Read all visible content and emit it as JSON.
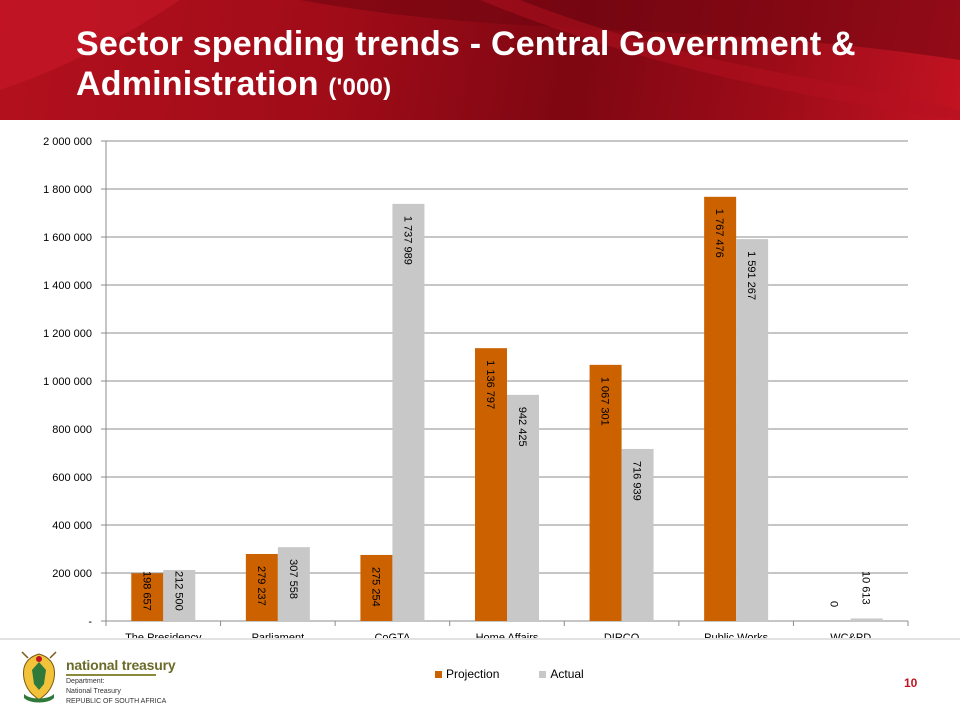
{
  "slide": {
    "title_main": "Sector spending trends - Central Government & Administration",
    "title_unit": "('000)",
    "page_number": "10"
  },
  "branding": {
    "name": "national treasury",
    "sub_lines": [
      "Department:",
      "National Treasury",
      "REPUBLIC OF SOUTH AFRICA"
    ]
  },
  "colors": {
    "header_red": "#a00c18",
    "projection": "#cc6100",
    "actual": "#c8c8c8",
    "page_number": "#c21322"
  },
  "chart_data": {
    "type": "bar",
    "categories": [
      "The Presidency",
      "Parliament",
      "CoGTA",
      "Home Affairs",
      "DIRCO",
      "Public Works",
      "WC&PD"
    ],
    "series": [
      {
        "name": "Projection",
        "values": [
          198657,
          279237,
          275254,
          1136797,
          1067301,
          1767476,
          0
        ],
        "labels": [
          "198 657",
          "279 237",
          "275 254",
          "1 136 797",
          "1 067 301",
          "1 767 476",
          "0"
        ]
      },
      {
        "name": "Actual",
        "values": [
          212500,
          307558,
          1737989,
          942425,
          716939,
          1591267,
          10613
        ],
        "labels": [
          "212 500",
          "307 558",
          "1 737 989",
          "942 425",
          "716 939",
          "1 591 267",
          "10 613"
        ]
      }
    ],
    "ylim": [
      0,
      2000000
    ],
    "yticks": [
      0,
      200000,
      400000,
      600000,
      800000,
      1000000,
      1200000,
      1400000,
      1600000,
      1800000,
      2000000
    ],
    "ytick_labels": [
      "-",
      "200 000",
      "400 000",
      "600 000",
      "800 000",
      "1 000 000",
      "1 200 000",
      "1 400 000",
      "1 600 000",
      "1 800 000",
      "2 000 000"
    ],
    "grid": true,
    "legend_position": "bottom",
    "data_labels": "rotated, inside bars"
  }
}
